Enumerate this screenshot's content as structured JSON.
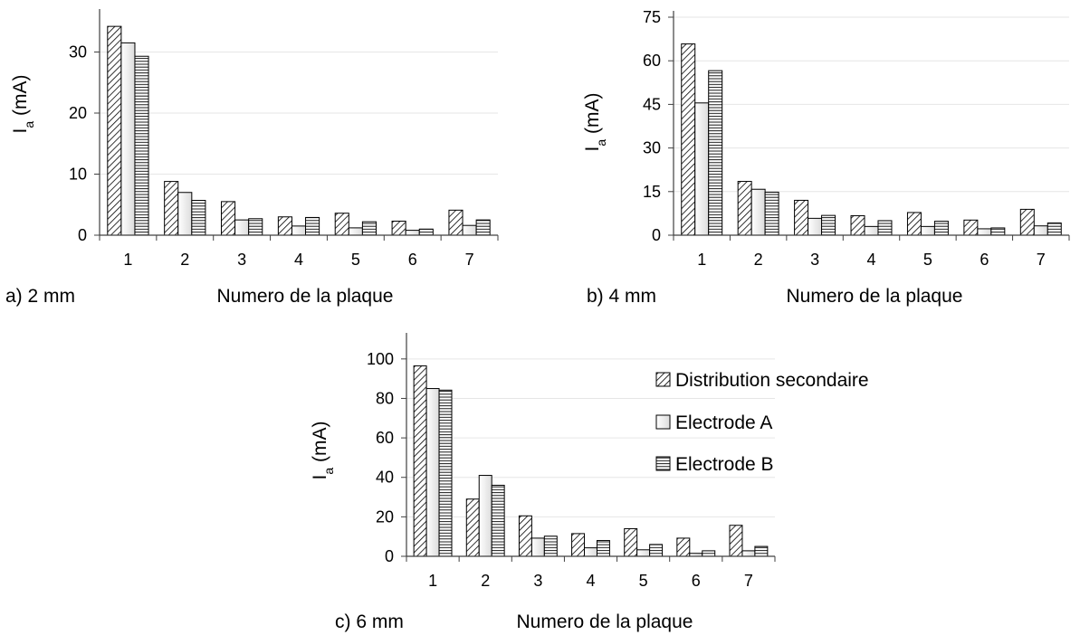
{
  "colors": {
    "axis": "#404040",
    "gridline": "#e6e6e6",
    "bar_stroke": "#000000",
    "bar_fill": "#ffffff",
    "series_fill_A": "#eeeeee"
  },
  "legend": {
    "entries": [
      "Distribution secondaire",
      "Electrode A",
      "Electrode B"
    ]
  },
  "chart_data": [
    {
      "type": "bar",
      "panel_label": "a) 2 mm",
      "xlabel": "Numero de la plaque",
      "ylabel_main": "I",
      "ylabel_sub": "a",
      "ylabel_unit": " (mA)",
      "categories": [
        "1",
        "2",
        "3",
        "4",
        "5",
        "6",
        "7"
      ],
      "ylim": [
        0,
        36
      ],
      "yticks": [
        0,
        10,
        20,
        30
      ],
      "series": [
        {
          "name": "Distribution secondaire",
          "pattern": "diag",
          "values": [
            34.2,
            8.8,
            5.5,
            3.0,
            3.6,
            2.3,
            4.1
          ]
        },
        {
          "name": "Electrode A",
          "pattern": "plain",
          "values": [
            31.5,
            7.0,
            2.5,
            1.5,
            1.2,
            0.8,
            1.6
          ]
        },
        {
          "name": "Electrode B",
          "pattern": "horiz",
          "values": [
            29.3,
            5.7,
            2.7,
            2.9,
            2.2,
            1.0,
            2.5
          ]
        }
      ]
    },
    {
      "type": "bar",
      "panel_label": "b) 4 mm",
      "xlabel": "Numero de la plaque",
      "ylabel_main": "I",
      "ylabel_sub": "a",
      "ylabel_unit": " (mA)",
      "categories": [
        "1",
        "2",
        "3",
        "4",
        "5",
        "6",
        "7"
      ],
      "ylim": [
        0,
        75
      ],
      "yticks": [
        0,
        15,
        30,
        45,
        60,
        75
      ],
      "series": [
        {
          "name": "Distribution secondaire",
          "pattern": "diag",
          "values": [
            65.8,
            18.5,
            12.0,
            6.7,
            7.8,
            5.2,
            8.9
          ]
        },
        {
          "name": "Electrode A",
          "pattern": "plain",
          "values": [
            45.5,
            15.8,
            5.8,
            3.0,
            3.0,
            2.2,
            3.2
          ]
        },
        {
          "name": "Electrode B",
          "pattern": "horiz",
          "values": [
            56.6,
            14.8,
            6.8,
            5.0,
            4.8,
            2.5,
            4.2
          ]
        }
      ]
    },
    {
      "type": "bar",
      "panel_label": "c) 6 mm",
      "xlabel": "Numero de la plaque",
      "ylabel_main": "I",
      "ylabel_sub": "a",
      "ylabel_unit": " (mA)",
      "categories": [
        "1",
        "2",
        "3",
        "4",
        "5",
        "6",
        "7"
      ],
      "ylim": [
        0,
        110
      ],
      "yticks": [
        0,
        20,
        40,
        60,
        80,
        100
      ],
      "series": [
        {
          "name": "Distribution secondaire",
          "pattern": "diag",
          "values": [
            96.5,
            29.0,
            20.5,
            11.5,
            14.0,
            9.2,
            15.7
          ]
        },
        {
          "name": "Electrode A",
          "pattern": "plain",
          "values": [
            85.0,
            41.0,
            9.2,
            4.3,
            3.3,
            1.5,
            2.8
          ]
        },
        {
          "name": "Electrode B",
          "pattern": "horiz",
          "values": [
            84.2,
            36.0,
            10.2,
            8.0,
            6.0,
            2.8,
            5.0
          ]
        }
      ]
    }
  ]
}
